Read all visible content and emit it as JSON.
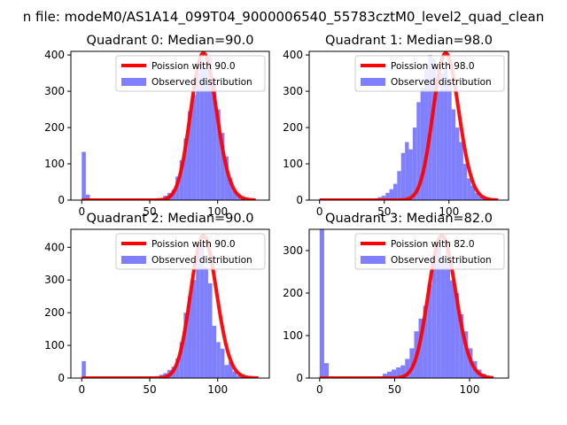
{
  "suptitle": "n file: modeM0/AS1A14_099T04_9000006540_55783cztM0_level2_quad_clean",
  "colors": {
    "poisson": "#ff0000",
    "hist": "#8080ff",
    "axes": "#000000"
  },
  "chart_data": [
    {
      "type": "bar",
      "title": "Quadrant 0: Median=90.0",
      "xlim": [
        -8,
        138
      ],
      "ylim": [
        0,
        410
      ],
      "xticks": [
        0,
        50,
        100
      ],
      "yticks": [
        0,
        100,
        200,
        300,
        400
      ],
      "legend": [
        "Poission with 90.0",
        "Observed distribution"
      ],
      "median": 90.0,
      "poisson_peak": 405,
      "poisson_range": [
        0,
        128
      ],
      "bin_width": 3,
      "bins": [
        0,
        3,
        51,
        54,
        57,
        60,
        63,
        66,
        69,
        72,
        75,
        78,
        81,
        84,
        87,
        90,
        93,
        96,
        99,
        102,
        105,
        108,
        111,
        114,
        117,
        120
      ],
      "counts": [
        133,
        15,
        2,
        4,
        6,
        12,
        20,
        28,
        65,
        110,
        170,
        245,
        290,
        350,
        385,
        360,
        395,
        330,
        250,
        185,
        120,
        60,
        25,
        12,
        5,
        2
      ]
    },
    {
      "type": "bar",
      "title": "Quadrant 1: Median=98.0",
      "xlim": [
        -8,
        146
      ],
      "ylim": [
        0,
        410
      ],
      "xticks": [
        0,
        50,
        100
      ],
      "yticks": [
        0,
        100,
        200,
        300,
        400
      ],
      "legend": [
        "Poission with 98.0",
        "Observed distribution"
      ],
      "median": 98.0,
      "poisson_peak": 405,
      "poisson_range": [
        0,
        138
      ],
      "bin_width": 3,
      "bins": [
        0,
        39,
        42,
        45,
        48,
        51,
        54,
        57,
        60,
        63,
        66,
        69,
        72,
        75,
        78,
        81,
        84,
        87,
        90,
        93,
        96,
        99,
        102,
        105,
        108,
        111,
        114,
        117,
        120,
        123,
        126,
        129,
        132
      ],
      "counts": [
        3,
        3,
        5,
        8,
        12,
        20,
        30,
        45,
        80,
        130,
        160,
        140,
        200,
        270,
        310,
        360,
        400,
        390,
        300,
        350,
        360,
        330,
        250,
        200,
        160,
        100,
        60,
        40,
        20,
        10,
        6,
        3,
        2
      ]
    },
    {
      "type": "bar",
      "title": "Quadrant 2: Median=90.0",
      "xlim": [
        -8,
        138
      ],
      "ylim": [
        0,
        455
      ],
      "xticks": [
        0,
        50,
        100
      ],
      "yticks": [
        0,
        100,
        200,
        300,
        400
      ],
      "legend": [
        "Poission with 90.0",
        "Observed distribution"
      ],
      "median": 90.0,
      "poisson_peak": 435,
      "poisson_range": [
        0,
        130
      ],
      "bin_width": 3,
      "bins": [
        0,
        54,
        57,
        60,
        63,
        66,
        69,
        72,
        75,
        78,
        81,
        84,
        87,
        90,
        93,
        96,
        99,
        102,
        105,
        108,
        111,
        114,
        117,
        120
      ],
      "counts": [
        52,
        5,
        10,
        15,
        25,
        35,
        60,
        110,
        200,
        250,
        300,
        390,
        410,
        340,
        290,
        160,
        110,
        90,
        40,
        50,
        20,
        8,
        3,
        2
      ]
    },
    {
      "type": "bar",
      "title": "Quadrant 3: Median=82.0",
      "xlim": [
        -7,
        126
      ],
      "ylim": [
        0,
        350
      ],
      "xticks": [
        0,
        50,
        100
      ],
      "yticks": [
        0,
        100,
        200,
        300
      ],
      "legend": [
        "Poission with 82.0",
        "Observed distribution"
      ],
      "median": 82.0,
      "poisson_peak": 335,
      "poisson_range": [
        0,
        116
      ],
      "bin_width": 3,
      "bins": [
        0,
        3,
        39,
        42,
        45,
        48,
        51,
        54,
        57,
        60,
        63,
        66,
        69,
        72,
        75,
        78,
        81,
        84,
        87,
        90,
        93,
        96,
        99,
        102,
        105,
        108,
        111
      ],
      "counts": [
        350,
        35,
        3,
        10,
        15,
        20,
        25,
        30,
        45,
        70,
        110,
        140,
        170,
        220,
        290,
        330,
        270,
        300,
        230,
        200,
        150,
        110,
        70,
        40,
        20,
        10,
        3
      ]
    }
  ]
}
